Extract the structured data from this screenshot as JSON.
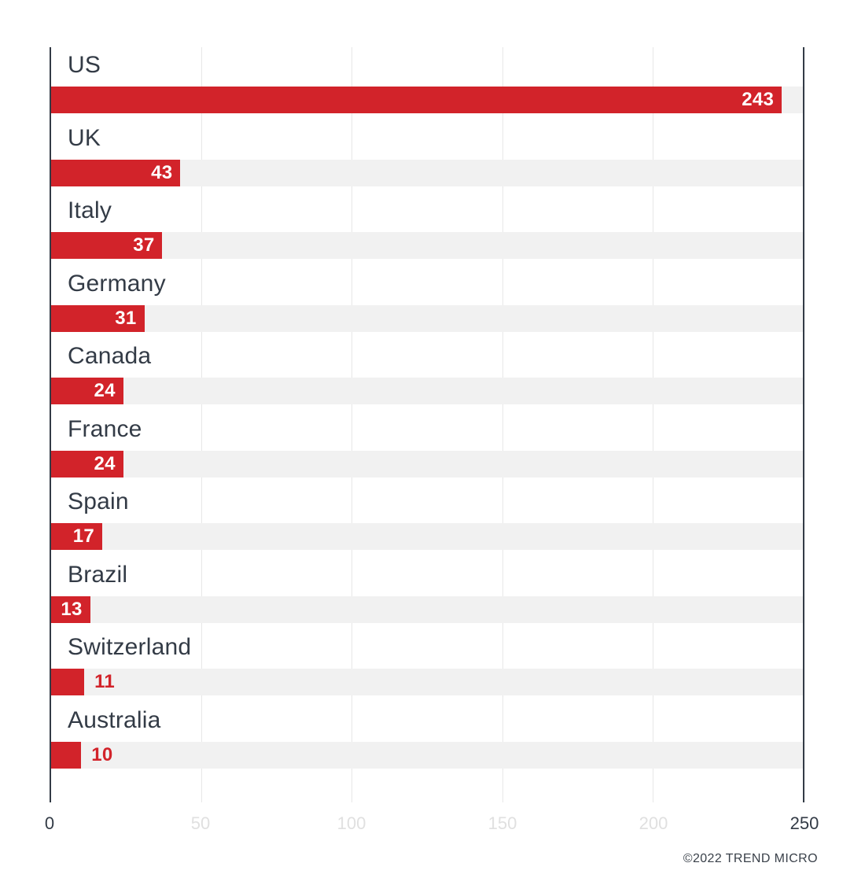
{
  "chart_data": {
    "type": "bar",
    "orientation": "horizontal",
    "categories": [
      "US",
      "UK",
      "Italy",
      "Germany",
      "Canada",
      "France",
      "Spain",
      "Brazil",
      "Switzerland",
      "Australia"
    ],
    "values": [
      243,
      43,
      37,
      31,
      24,
      24,
      17,
      13,
      11,
      10
    ],
    "title": "",
    "xlabel": "",
    "ylabel": "",
    "xlim": [
      0,
      250
    ],
    "x_ticks": [
      "0",
      "50",
      "100",
      "150",
      "200",
      "250"
    ],
    "dark_tick_indexes": [
      0,
      5
    ],
    "grid": true,
    "legend": "none",
    "bar_color": "#d2232a",
    "track_color": "#f1f1f1",
    "value_label_inside_color": "#ffffff",
    "value_label_outside_color": "#d2232a",
    "category_label_color": "#333b46",
    "axis_line_color": "#333b46",
    "gridline_color": "#e7e7e7",
    "tick_label_light_color": "#e0e0e0",
    "tick_label_dark_color": "#333b46"
  },
  "footer": {
    "copyright": "©2022 TREND MICRO"
  }
}
